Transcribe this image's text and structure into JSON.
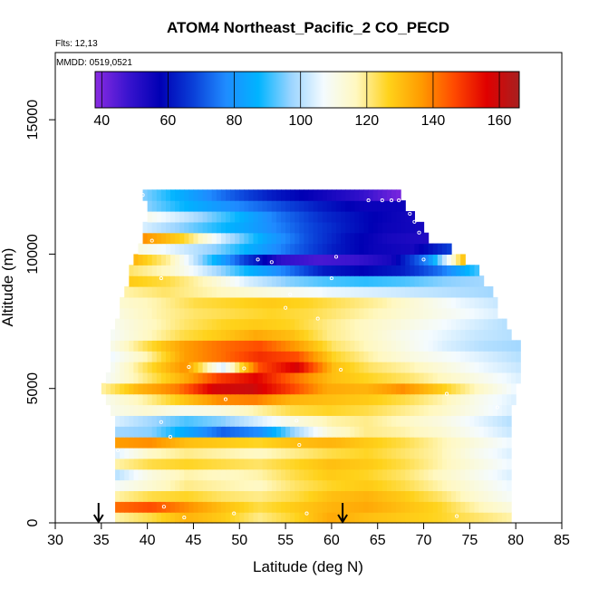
{
  "chart_data": {
    "type": "heatmap",
    "title": "ATOM4 Northeast_Pacific_2 CO_PECD",
    "flights_note": "Flts: 12,13",
    "dates_note": "MMDD: 0519,0521",
    "xlabel": "Latitude (deg N)",
    "ylabel": "Altitude (m)",
    "xlim": [
      30,
      85
    ],
    "ylim": [
      0,
      17500
    ],
    "x_ticks": [
      "30",
      "35",
      "40",
      "45",
      "50",
      "55",
      "60",
      "65",
      "70",
      "75",
      "80",
      "85"
    ],
    "y_ticks": [
      "0",
      "5000",
      "10000",
      "15000"
    ],
    "colorbar": {
      "range": [
        38,
        166
      ],
      "ticks": [
        "40",
        "60",
        "80",
        "100",
        "120",
        "140",
        "160"
      ],
      "colors": [
        "#8a2be2",
        "#3a14cf",
        "#0000b4",
        "#0a3fd8",
        "#1f8bff",
        "#00b4ff",
        "#9ad4ff",
        "#f4fbff",
        "#fff8c0",
        "#ffd21a",
        "#ff9b00",
        "#ff4a00",
        "#e00000",
        "#a82020"
      ]
    },
    "grid": false,
    "legend": "top colorbar",
    "arrows_at_latitude": [
      34.7,
      61.2
    ],
    "band_height": 400,
    "bands": [
      {
        "alt": 200,
        "lat_start": 36.5,
        "lat_end": 79.5,
        "values": [
          118,
          124,
          132,
          128,
          120,
          126,
          134,
          130,
          128,
          126,
          122,
          118
        ]
      },
      {
        "alt": 600,
        "lat_start": 36.5,
        "lat_end": 79.5,
        "values": [
          142,
          146,
          138,
          130,
          124,
          128,
          132,
          134,
          130,
          126,
          118,
          112
        ]
      },
      {
        "alt": 1000,
        "lat_start": 36.5,
        "lat_end": 79.5,
        "values": [
          118,
          124,
          126,
          122,
          120,
          124,
          130,
          132,
          128,
          122,
          114,
          108
        ]
      },
      {
        "alt": 1400,
        "lat_start": 36.5,
        "lat_end": 79.5,
        "values": [
          108,
          114,
          120,
          118,
          116,
          122,
          126,
          128,
          124,
          118,
          112,
          106
        ]
      },
      {
        "alt": 1800,
        "lat_start": 36.5,
        "lat_end": 79.5,
        "values": [
          100,
          112,
          118,
          116,
          118,
          124,
          128,
          126,
          122,
          116,
          110,
          104
        ]
      },
      {
        "alt": 2200,
        "lat_start": 36.5,
        "lat_end": 79.5,
        "values": [
          118,
          124,
          126,
          124,
          122,
          126,
          130,
          128,
          124,
          118,
          112,
          106
        ]
      },
      {
        "alt": 2600,
        "lat_start": 36.5,
        "lat_end": 79.5,
        "values": [
          104,
          116,
          120,
          118,
          116,
          120,
          124,
          126,
          122,
          118,
          110,
          104
        ]
      },
      {
        "alt": 3000,
        "lat_start": 36.5,
        "lat_end": 79.5,
        "values": [
          136,
          138,
          130,
          128,
          126,
          130,
          132,
          128,
          124,
          118,
          112,
          106
        ]
      },
      {
        "alt": 3400,
        "lat_start": 36.5,
        "lat_end": 79.5,
        "values": [
          98,
          96,
          84,
          72,
          78,
          98,
          114,
          120,
          118,
          114,
          108,
          102
        ]
      },
      {
        "alt": 3800,
        "lat_start": 36.5,
        "lat_end": 79.5,
        "values": [
          104,
          98,
          92,
          96,
          104,
          112,
          118,
          120,
          116,
          112,
          106,
          100
        ]
      },
      {
        "alt": 4200,
        "lat_start": 36,
        "lat_end": 79.5,
        "values": [
          110,
          114,
          110,
          112,
          118,
          124,
          126,
          124,
          120,
          116,
          110,
          104
        ]
      },
      {
        "alt": 4600,
        "lat_start": 35.5,
        "lat_end": 80,
        "values": [
          110,
          118,
          128,
          138,
          140,
          132,
          130,
          128,
          124,
          118,
          110,
          104
        ]
      },
      {
        "alt": 5000,
        "lat_start": 35,
        "lat_end": 80,
        "values": [
          118,
          132,
          140,
          158,
          160,
          148,
          134,
          132,
          138,
          128,
          116,
          106
        ]
      },
      {
        "alt": 5400,
        "lat_start": 35.5,
        "lat_end": 80.5,
        "values": [
          108,
          120,
          132,
          148,
          156,
          142,
          130,
          126,
          122,
          116,
          110,
          104
        ]
      },
      {
        "alt": 5800,
        "lat_start": 36,
        "lat_end": 80.5,
        "values": [
          108,
          124,
          138,
          104,
          146,
          158,
          130,
          122,
          118,
          112,
          106,
          102
        ]
      },
      {
        "alt": 6200,
        "lat_start": 36,
        "lat_end": 80.5,
        "values": [
          106,
          118,
          136,
          142,
          150,
          146,
          126,
          118,
          112,
          108,
          104,
          100
        ]
      },
      {
        "alt": 6600,
        "lat_start": 36,
        "lat_end": 80.5,
        "values": [
          110,
          124,
          136,
          142,
          146,
          136,
          122,
          116,
          110,
          104,
          100,
          98
        ]
      },
      {
        "alt": 7000,
        "lat_start": 36,
        "lat_end": 79.5,
        "values": [
          108,
          116,
          124,
          128,
          134,
          130,
          120,
          116,
          110,
          106,
          102,
          100
        ]
      },
      {
        "alt": 7400,
        "lat_start": 36.5,
        "lat_end": 79,
        "values": [
          110,
          116,
          122,
          126,
          128,
          126,
          120,
          116,
          112,
          108,
          104,
          100
        ]
      },
      {
        "alt": 7800,
        "lat_start": 37,
        "lat_end": 78,
        "values": [
          112,
          118,
          122,
          124,
          126,
          124,
          120,
          116,
          112,
          108,
          104
        ]
      },
      {
        "alt": 8200,
        "lat_start": 37,
        "lat_end": 78,
        "values": [
          114,
          118,
          124,
          126,
          128,
          126,
          122,
          118,
          112,
          106,
          102
        ]
      },
      {
        "alt": 8600,
        "lat_start": 37.5,
        "lat_end": 77.5,
        "values": [
          118,
          122,
          118,
          114,
          110,
          106,
          104,
          102,
          100,
          98
        ]
      },
      {
        "alt": 9000,
        "lat_start": 38,
        "lat_end": 76.5,
        "values": [
          128,
          124,
          116,
          104,
          96,
          92,
          90,
          92,
          96,
          98
        ]
      },
      {
        "alt": 9400,
        "lat_start": 38,
        "lat_end": 76,
        "values": [
          122,
          116,
          102,
          88,
          76,
          62,
          58,
          62,
          74,
          92
        ]
      },
      {
        "alt": 9800,
        "lat_start": 38.5,
        "lat_end": 74.5,
        "values": [
          132,
          118,
          92,
          68,
          50,
          46,
          48,
          54,
          78,
          132
        ]
      },
      {
        "alt": 10200,
        "lat_start": 39,
        "lat_end": 73,
        "values": [
          112,
          104,
          96,
          84,
          72,
          62,
          56,
          54,
          68
        ]
      },
      {
        "alt": 10600,
        "lat_start": 39.5,
        "lat_end": 70.5,
        "values": [
          138,
          126,
          102,
          84,
          70,
          60,
          54,
          52
        ]
      },
      {
        "alt": 11000,
        "lat_start": 39.5,
        "lat_end": 70,
        "values": [
          104,
          96,
          88,
          80,
          70,
          62,
          56,
          54
        ]
      },
      {
        "alt": 11400,
        "lat_start": 40,
        "lat_end": 69,
        "values": [
          110,
          100,
          88,
          74,
          64,
          58,
          54
        ]
      },
      {
        "alt": 11800,
        "lat_start": 40,
        "lat_end": 68,
        "values": [
          96,
          86,
          78,
          70,
          62,
          56,
          56
        ]
      },
      {
        "alt": 12200,
        "lat_start": 39.5,
        "lat_end": 67.5,
        "values": [
          96,
          84,
          72,
          62,
          56,
          50,
          40
        ]
      }
    ],
    "sample_points": [
      {
        "lat": 36.2,
        "alt": 450
      },
      {
        "lat": 41.8,
        "alt": 600
      },
      {
        "lat": 44,
        "alt": 200
      },
      {
        "lat": 49.4,
        "alt": 350
      },
      {
        "lat": 57.3,
        "alt": 350
      },
      {
        "lat": 73.6,
        "alt": 250
      },
      {
        "lat": 36.8,
        "alt": 2700
      },
      {
        "lat": 42.5,
        "alt": 3200
      },
      {
        "lat": 56.5,
        "alt": 2900
      },
      {
        "lat": 41.5,
        "alt": 3750
      },
      {
        "lat": 56.2,
        "alt": 3800
      },
      {
        "lat": 48.5,
        "alt": 4600
      },
      {
        "lat": 72.5,
        "alt": 4800
      },
      {
        "lat": 78,
        "alt": 4300
      },
      {
        "lat": 44.5,
        "alt": 5800
      },
      {
        "lat": 50.5,
        "alt": 5750
      },
      {
        "lat": 61,
        "alt": 5700
      },
      {
        "lat": 58.5,
        "alt": 7600
      },
      {
        "lat": 55.5,
        "alt": 8500
      },
      {
        "lat": 55,
        "alt": 8000
      },
      {
        "lat": 41.5,
        "alt": 9100
      },
      {
        "lat": 60,
        "alt": 9100
      },
      {
        "lat": 52,
        "alt": 9800
      },
      {
        "lat": 53.5,
        "alt": 9700
      },
      {
        "lat": 60.5,
        "alt": 9900
      },
      {
        "lat": 70,
        "alt": 9800
      },
      {
        "lat": 40.5,
        "alt": 10500
      },
      {
        "lat": 69.5,
        "alt": 10800
      },
      {
        "lat": 69,
        "alt": 11200
      },
      {
        "lat": 68.5,
        "alt": 11500
      },
      {
        "lat": 64,
        "alt": 12000
      },
      {
        "lat": 65.5,
        "alt": 12000
      },
      {
        "lat": 66.5,
        "alt": 12000
      },
      {
        "lat": 67.3,
        "alt": 12000
      },
      {
        "lat": 39.5,
        "alt": 12200
      }
    ]
  }
}
